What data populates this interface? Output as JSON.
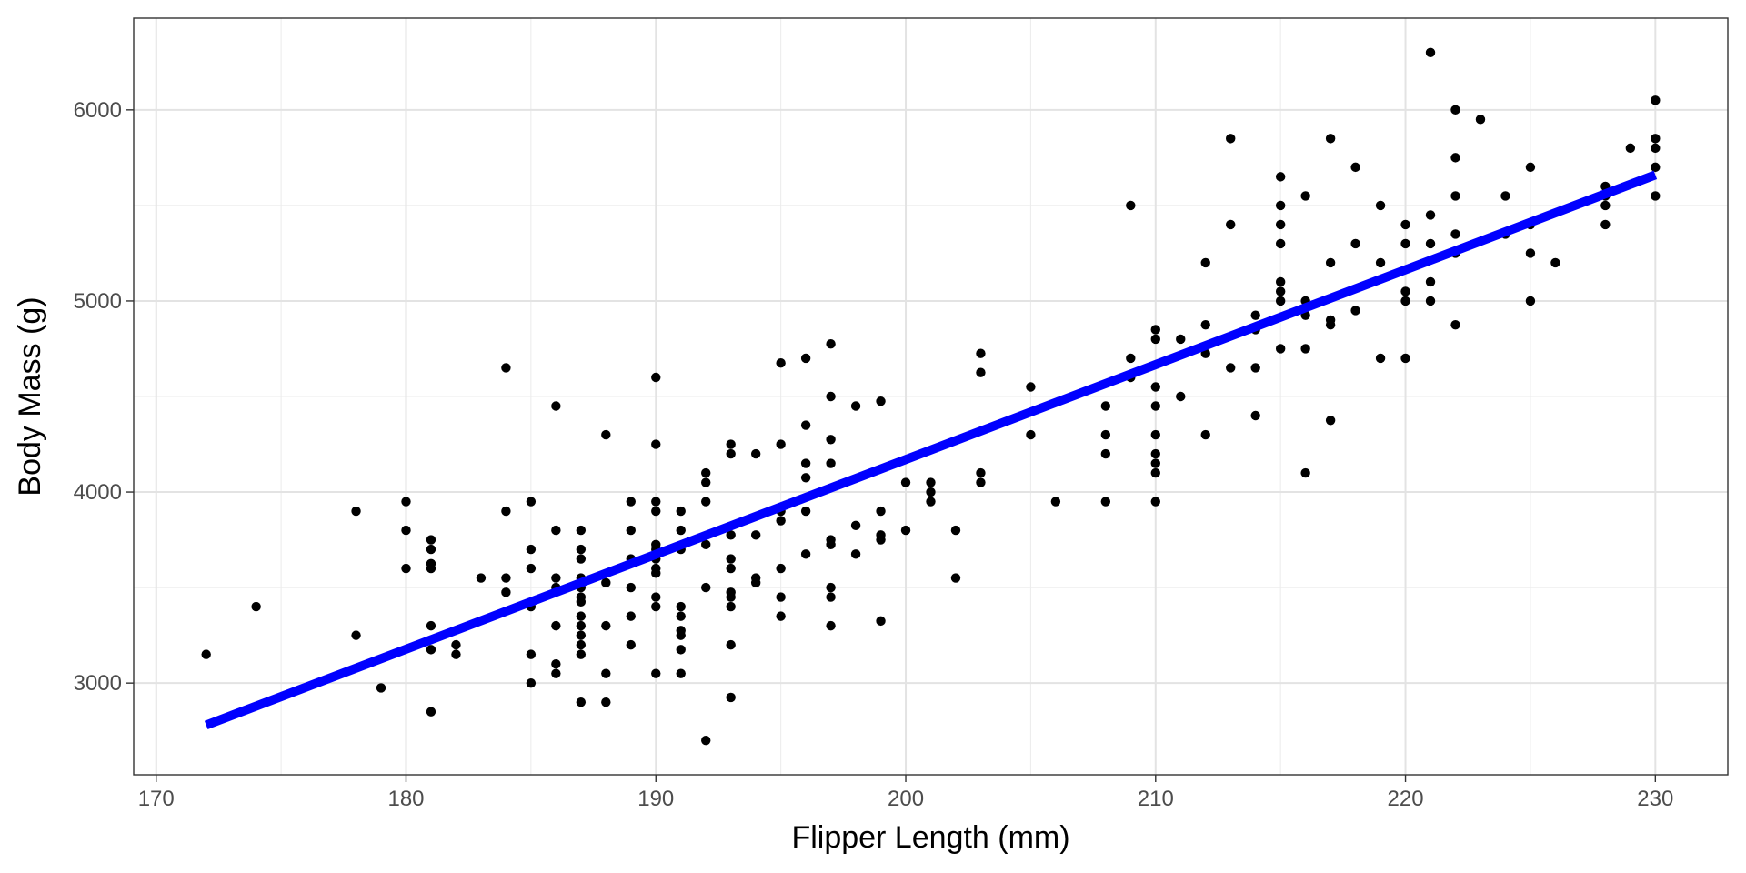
{
  "chart_data": {
    "type": "scatter",
    "title": "",
    "xlabel": "Flipper Length (mm)",
    "ylabel": "Body Mass (g)",
    "xlim": [
      169.1,
      232.9
    ],
    "ylim": [
      2520,
      6480
    ],
    "xticks": [
      170,
      180,
      190,
      200,
      210,
      220,
      230
    ],
    "yticks": [
      3000,
      4000,
      5000,
      6000
    ],
    "x_tick_labels": [
      "170",
      "180",
      "190",
      "200",
      "210",
      "220",
      "230"
    ],
    "y_tick_labels": [
      "3000",
      "4000",
      "5000",
      "6000"
    ],
    "grid": true,
    "legend": "none",
    "point_color": "#000000",
    "regression_line": {
      "x": [
        172,
        230
      ],
      "y": [
        2780,
        5660
      ],
      "color": "#0000ff"
    },
    "points": [
      [
        172,
        3150
      ],
      [
        174,
        3400
      ],
      [
        178,
        3900
      ],
      [
        178,
        3250
      ],
      [
        179,
        2975
      ],
      [
        180,
        3950
      ],
      [
        180,
        3800
      ],
      [
        180,
        3600
      ],
      [
        181,
        3750
      ],
      [
        181,
        3700
      ],
      [
        181,
        3625
      ],
      [
        181,
        3600
      ],
      [
        181,
        3300
      ],
      [
        181,
        3175
      ],
      [
        181,
        2850
      ],
      [
        182,
        3200
      ],
      [
        182,
        3150
      ],
      [
        183,
        3550
      ],
      [
        184,
        4650
      ],
      [
        184,
        3900
      ],
      [
        184,
        3550
      ],
      [
        184,
        3475
      ],
      [
        185,
        3950
      ],
      [
        185,
        3700
      ],
      [
        185,
        3600
      ],
      [
        185,
        3400
      ],
      [
        185,
        3150
      ],
      [
        185,
        3000
      ],
      [
        186,
        4450
      ],
      [
        186,
        3800
      ],
      [
        186,
        3550
      ],
      [
        186,
        3500
      ],
      [
        186,
        3300
      ],
      [
        186,
        3100
      ],
      [
        186,
        3050
      ],
      [
        187,
        3800
      ],
      [
        187,
        3700
      ],
      [
        187,
        3650
      ],
      [
        187,
        3550
      ],
      [
        187,
        3500
      ],
      [
        187,
        3450
      ],
      [
        187,
        3425
      ],
      [
        187,
        3350
      ],
      [
        187,
        3300
      ],
      [
        187,
        3250
      ],
      [
        187,
        3200
      ],
      [
        187,
        3150
      ],
      [
        187,
        2900
      ],
      [
        188,
        4300
      ],
      [
        188,
        3525
      ],
      [
        188,
        3300
      ],
      [
        188,
        3050
      ],
      [
        188,
        2900
      ],
      [
        189,
        3950
      ],
      [
        189,
        3800
      ],
      [
        189,
        3650
      ],
      [
        189,
        3500
      ],
      [
        189,
        3350
      ],
      [
        189,
        3200
      ],
      [
        190,
        4600
      ],
      [
        190,
        4250
      ],
      [
        190,
        3950
      ],
      [
        190,
        3900
      ],
      [
        190,
        3725
      ],
      [
        190,
        3700
      ],
      [
        190,
        3650
      ],
      [
        190,
        3600
      ],
      [
        190,
        3575
      ],
      [
        190,
        3450
      ],
      [
        190,
        3400
      ],
      [
        190,
        3050
      ],
      [
        191,
        3900
      ],
      [
        191,
        3800
      ],
      [
        191,
        3700
      ],
      [
        191,
        3400
      ],
      [
        191,
        3350
      ],
      [
        191,
        3275
      ],
      [
        191,
        3250
      ],
      [
        191,
        3175
      ],
      [
        191,
        3050
      ],
      [
        192,
        4100
      ],
      [
        192,
        4050
      ],
      [
        192,
        3950
      ],
      [
        192,
        3725
      ],
      [
        192,
        3500
      ],
      [
        192,
        2700
      ],
      [
        193,
        4250
      ],
      [
        193,
        4200
      ],
      [
        193,
        3775
      ],
      [
        193,
        3650
      ],
      [
        193,
        3600
      ],
      [
        193,
        3475
      ],
      [
        193,
        3450
      ],
      [
        193,
        3400
      ],
      [
        193,
        3200
      ],
      [
        193,
        2925
      ],
      [
        194,
        4200
      ],
      [
        194,
        3775
      ],
      [
        194,
        3550
      ],
      [
        194,
        3525
      ],
      [
        195,
        4675
      ],
      [
        195,
        4250
      ],
      [
        195,
        3900
      ],
      [
        195,
        3850
      ],
      [
        195,
        3600
      ],
      [
        195,
        3450
      ],
      [
        195,
        3350
      ],
      [
        196,
        4700
      ],
      [
        196,
        4350
      ],
      [
        196,
        4150
      ],
      [
        196,
        4075
      ],
      [
        196,
        3900
      ],
      [
        196,
        3675
      ],
      [
        197,
        4775
      ],
      [
        197,
        4500
      ],
      [
        197,
        4275
      ],
      [
        197,
        4150
      ],
      [
        197,
        3750
      ],
      [
        197,
        3725
      ],
      [
        197,
        3500
      ],
      [
        197,
        3450
      ],
      [
        197,
        3300
      ],
      [
        198,
        4450
      ],
      [
        198,
        3825
      ],
      [
        198,
        3675
      ],
      [
        199,
        4475
      ],
      [
        199,
        3900
      ],
      [
        199,
        3775
      ],
      [
        199,
        3750
      ],
      [
        199,
        3325
      ],
      [
        200,
        4050
      ],
      [
        200,
        3800
      ],
      [
        201,
        4050
      ],
      [
        201,
        4000
      ],
      [
        201,
        3950
      ],
      [
        202,
        3800
      ],
      [
        202,
        3550
      ],
      [
        203,
        4725
      ],
      [
        203,
        4625
      ],
      [
        203,
        4100
      ],
      [
        203,
        4050
      ],
      [
        205,
        4550
      ],
      [
        205,
        4300
      ],
      [
        206,
        3950
      ],
      [
        208,
        4450
      ],
      [
        208,
        4300
      ],
      [
        208,
        4200
      ],
      [
        208,
        3950
      ],
      [
        209,
        5500
      ],
      [
        209,
        4700
      ],
      [
        209,
        4600
      ],
      [
        210,
        4850
      ],
      [
        210,
        4800
      ],
      [
        210,
        4550
      ],
      [
        210,
        4450
      ],
      [
        210,
        4300
      ],
      [
        210,
        4200
      ],
      [
        210,
        4150
      ],
      [
        210,
        4100
      ],
      [
        210,
        3950
      ],
      [
        211,
        4800
      ],
      [
        211,
        4500
      ],
      [
        212,
        5200
      ],
      [
        212,
        4875
      ],
      [
        212,
        4725
      ],
      [
        212,
        4300
      ],
      [
        213,
        5850
      ],
      [
        213,
        5400
      ],
      [
        213,
        4650
      ],
      [
        214,
        4925
      ],
      [
        214,
        4850
      ],
      [
        214,
        4650
      ],
      [
        214,
        4400
      ],
      [
        215,
        5650
      ],
      [
        215,
        5500
      ],
      [
        215,
        5400
      ],
      [
        215,
        5300
      ],
      [
        215,
        5100
      ],
      [
        215,
        5050
      ],
      [
        215,
        5000
      ],
      [
        215,
        4750
      ],
      [
        216,
        5550
      ],
      [
        216,
        5000
      ],
      [
        216,
        4925
      ],
      [
        216,
        4750
      ],
      [
        216,
        4100
      ],
      [
        217,
        5850
      ],
      [
        217,
        5200
      ],
      [
        217,
        4900
      ],
      [
        217,
        4875
      ],
      [
        217,
        4375
      ],
      [
        218,
        5700
      ],
      [
        218,
        5300
      ],
      [
        218,
        4950
      ],
      [
        219,
        5500
      ],
      [
        219,
        5200
      ],
      [
        219,
        4700
      ],
      [
        220,
        5400
      ],
      [
        220,
        5300
      ],
      [
        220,
        5050
      ],
      [
        220,
        5000
      ],
      [
        220,
        4700
      ],
      [
        221,
        6300
      ],
      [
        221,
        5450
      ],
      [
        221,
        5300
      ],
      [
        221,
        5100
      ],
      [
        221,
        5000
      ],
      [
        222,
        6000
      ],
      [
        222,
        5750
      ],
      [
        222,
        5550
      ],
      [
        222,
        5350
      ],
      [
        222,
        5250
      ],
      [
        222,
        4875
      ],
      [
        223,
        5950
      ],
      [
        224,
        5550
      ],
      [
        224,
        5350
      ],
      [
        225,
        5700
      ],
      [
        225,
        5400
      ],
      [
        225,
        5250
      ],
      [
        225,
        5000
      ],
      [
        226,
        5200
      ],
      [
        228,
        5600
      ],
      [
        228,
        5550
      ],
      [
        228,
        5500
      ],
      [
        228,
        5400
      ],
      [
        229,
        5800
      ],
      [
        230,
        6050
      ],
      [
        230,
        5850
      ],
      [
        230,
        5800
      ],
      [
        230,
        5700
      ],
      [
        230,
        5550
      ]
    ]
  }
}
